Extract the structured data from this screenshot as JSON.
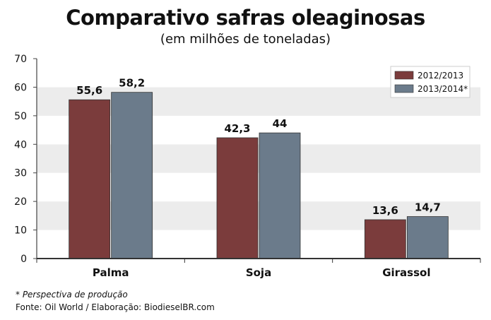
{
  "chart_data": {
    "type": "bar",
    "title": "Comparativo safras oleaginosas",
    "subtitle": "(em milhões de toneladas)",
    "categories": [
      "Palma",
      "Soja",
      "Girassol"
    ],
    "series": [
      {
        "name": "2012/2013",
        "values": [
          55.6,
          42.3,
          13.6
        ],
        "labels": [
          "55,6",
          "42,3",
          "13,6"
        ],
        "color": "#7b3c3c"
      },
      {
        "name": "2013/2014*",
        "values": [
          58.2,
          44,
          14.7
        ],
        "labels": [
          "58,2",
          "44",
          "14,7"
        ],
        "color": "#6b7b8b"
      }
    ],
    "ylim": [
      0,
      70
    ],
    "yticks": [
      0,
      10,
      20,
      30,
      40,
      50,
      60,
      70
    ],
    "legend": "top-right",
    "grid": "alternating bands"
  },
  "footnote": "* Perspectiva de produção",
  "source": "Fonte: Oil World / Elaboração: BiodieselBR.com"
}
